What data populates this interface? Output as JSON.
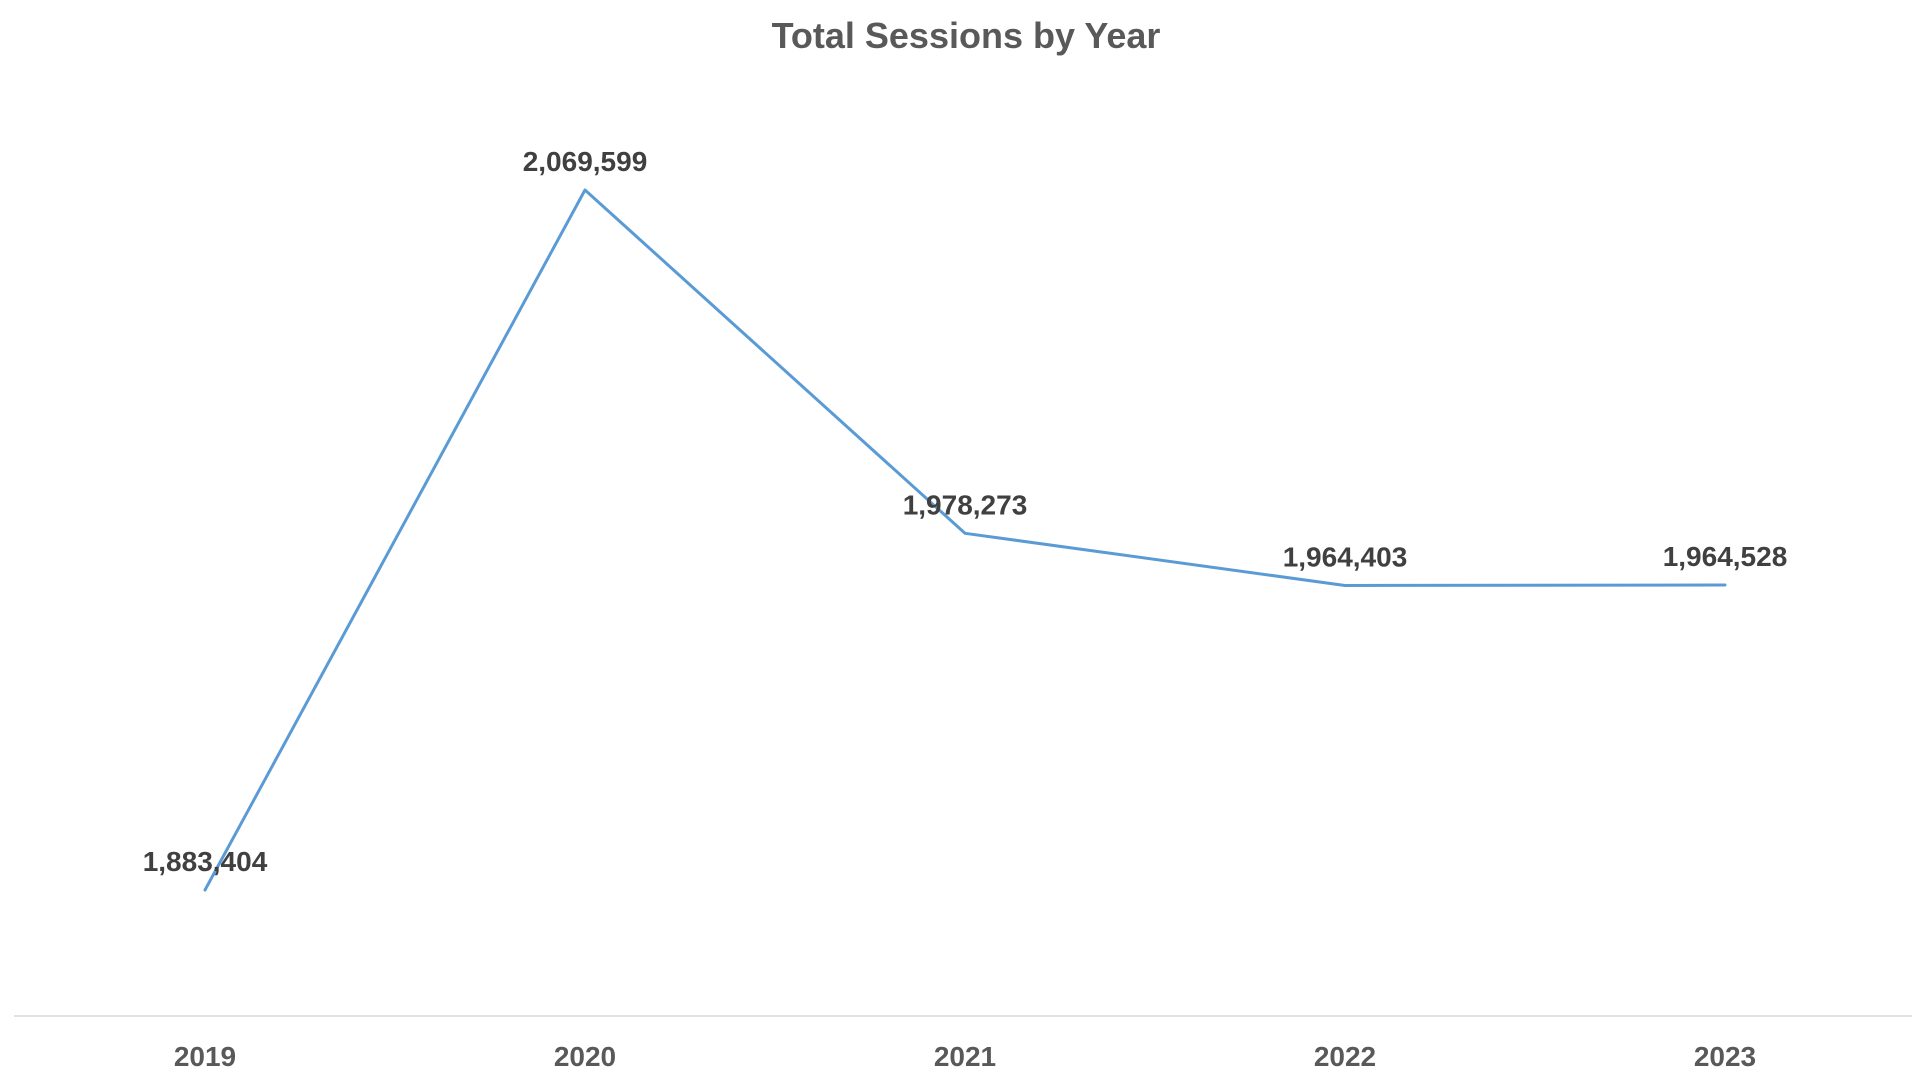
{
  "chart_data": {
    "type": "line",
    "title": "Total Sessions by Year",
    "categories": [
      "2019",
      "2020",
      "2021",
      "2022",
      "2023"
    ],
    "series": [
      {
        "values": [
          1883404,
          2069599,
          1978273,
          1964403,
          1964528
        ],
        "color": "#5b9bd5"
      }
    ],
    "data_labels": [
      "1,883,404",
      "2,069,599",
      "1,978,273",
      "1,964,403",
      "1,964,528"
    ],
    "xlabel": "",
    "ylabel": "",
    "grid": false,
    "legend": "none"
  }
}
